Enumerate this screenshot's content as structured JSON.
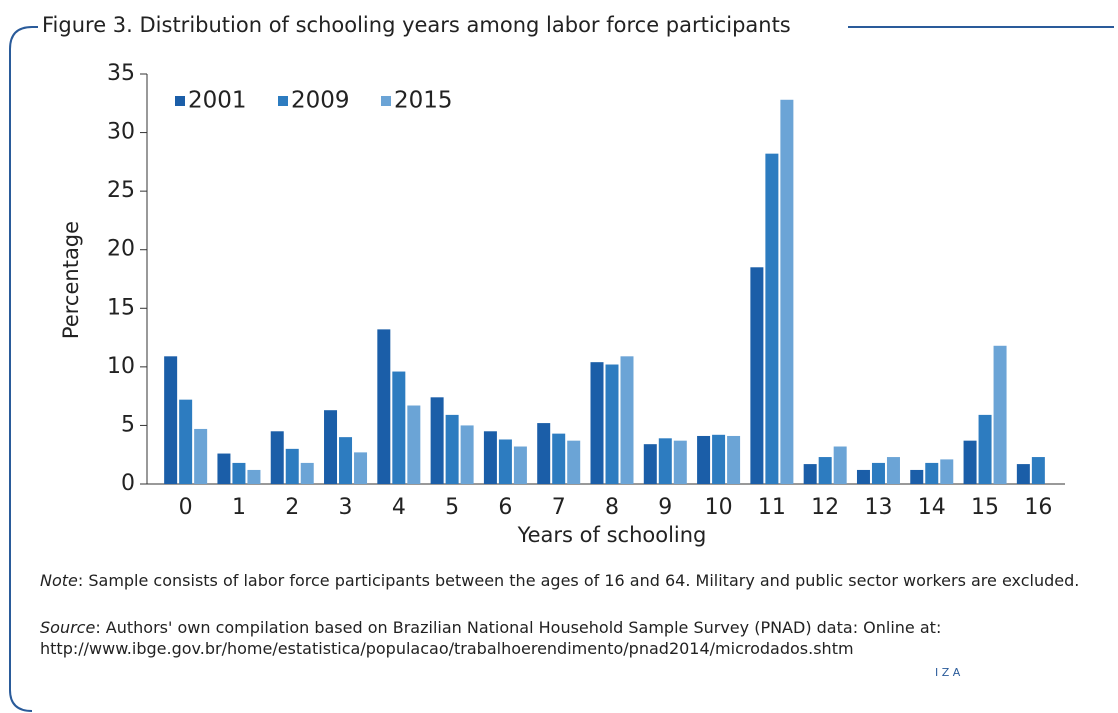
{
  "figure_title": "Figure 3. Distribution of schooling years among labor force participants",
  "chart_data": {
    "type": "bar",
    "categories": [
      "0",
      "1",
      "2",
      "3",
      "4",
      "5",
      "6",
      "7",
      "8",
      "9",
      "10",
      "11",
      "12",
      "13",
      "14",
      "15",
      "16"
    ],
    "series": [
      {
        "name": "2001",
        "color": "#1b5ea8",
        "values": [
          10.9,
          2.6,
          4.5,
          6.3,
          13.2,
          7.4,
          4.5,
          5.2,
          10.4,
          3.4,
          4.1,
          18.5,
          1.7,
          1.2,
          1.2,
          3.7,
          1.7
        ]
      },
      {
        "name": "2009",
        "color": "#2d7cc0",
        "values": [
          7.2,
          1.8,
          3.0,
          4.0,
          9.6,
          5.9,
          3.8,
          4.3,
          10.2,
          3.9,
          4.2,
          28.2,
          2.3,
          1.8,
          1.8,
          5.9,
          2.3
        ]
      },
      {
        "name": "2015",
        "color": "#6ba4d6",
        "values": [
          4.7,
          1.2,
          1.8,
          2.7,
          6.7,
          5.0,
          3.2,
          3.7,
          10.9,
          3.7,
          4.1,
          32.8,
          3.2,
          2.3,
          2.1,
          11.8,
          null
        ]
      }
    ],
    "ylim": [
      0,
      35
    ],
    "yticks": [
      0,
      5,
      10,
      15,
      20,
      25,
      30,
      35
    ],
    "xlabel": "Years of schooling",
    "ylabel": "Percentage",
    "legend": "top-left"
  },
  "note": {
    "label": "Note",
    "text": ": Sample consists of labor force participants between the ages of 16 and 64. Military and public sector workers are excluded."
  },
  "source": {
    "label": "Source",
    "text": ": Authors' own compilation based on Brazilian National Household Sample Survey (PNAD) data: Online at:",
    "url": "http://www.ibge.gov.br/home/estatistica/populacao/trabalhoerendimento/pnad2014/microdados.shtm"
  },
  "logo": "I Z A"
}
